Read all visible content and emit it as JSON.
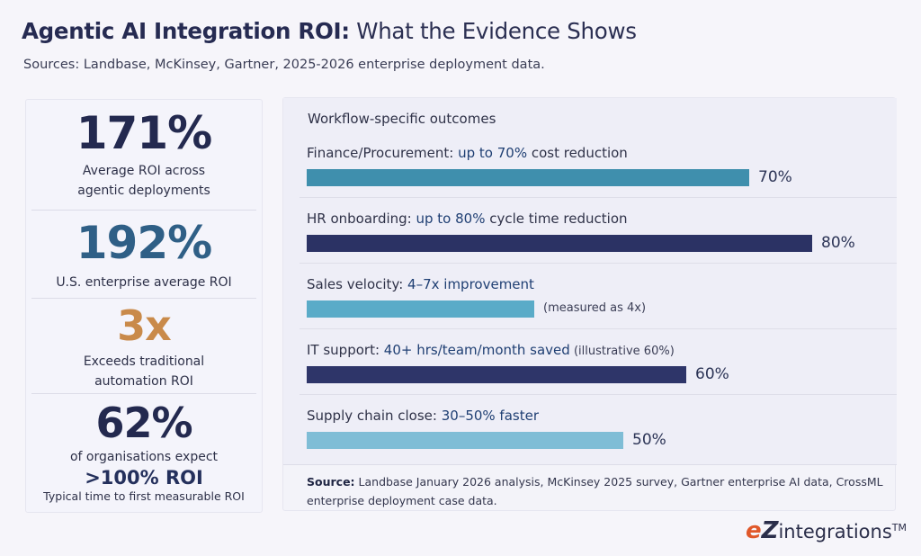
{
  "header": {
    "title_bold": "Agentic AI Integration ROI:",
    "title_rest": " What the Evidence Shows",
    "subtitle": "Sources: Landbase, McKinsey, Gartner, 2025-2026 enterprise deployment data."
  },
  "stats": [
    {
      "value": "171%",
      "label_1": "Average ROI across",
      "label_2": "agentic deployments"
    },
    {
      "value": "192%",
      "label_1": "U.S. enterprise average ROI"
    },
    {
      "value": "3x",
      "label_1": "Exceeds traditional",
      "label_2": "automation ROI"
    },
    {
      "value": "62%",
      "label_1": "of organisations expect",
      "roi": ">100% ROI",
      "roi_note": "Typical time to first measurable ROI"
    }
  ],
  "colors": {
    "teal_bar": "#3f8fad",
    "navy_bar": "#2b3264",
    "light_bar": "#5aabc8",
    "navy_bar_2": "#2e3569",
    "pale_bar": "#7fbdd6",
    "accent_orange": "#c98a4a"
  },
  "chart_data": {
    "type": "bar",
    "orientation": "horizontal",
    "title": "Workflow-specific outcomes",
    "xlim": [
      0,
      100
    ],
    "items": [
      {
        "label": "Finance/Procurement: ",
        "highlight": "up to 70%",
        "rest": " cost reduction",
        "value": 70,
        "value_label": "70%"
      },
      {
        "label": "HR onboarding: ",
        "highlight": "up to 80%",
        "rest": " cycle time reduction",
        "value": 80,
        "value_label": "80%"
      },
      {
        "label": "Sales velocity: ",
        "highlight": "4–7x improvement",
        "rest": "",
        "value": 36,
        "value_label": "(measured as 4x)"
      },
      {
        "label": "IT support: ",
        "highlight": "40+ hrs/team/month saved",
        "rest": " (illustrative 60%)",
        "value": 60,
        "value_label": "60%"
      },
      {
        "label": "Supply chain close: ",
        "highlight": "30–50% faster",
        "rest": "",
        "value": 50,
        "value_label": "50%"
      }
    ]
  },
  "source": {
    "label": "Source:",
    "text": " Landbase January 2026 analysis, McKinsey 2025 survey, Gartner enterprise AI data, CrossML enterprise deployment case data."
  },
  "logo": {
    "e": "e",
    "z": "Z",
    "rest": "integrations",
    "tm": "TM"
  }
}
